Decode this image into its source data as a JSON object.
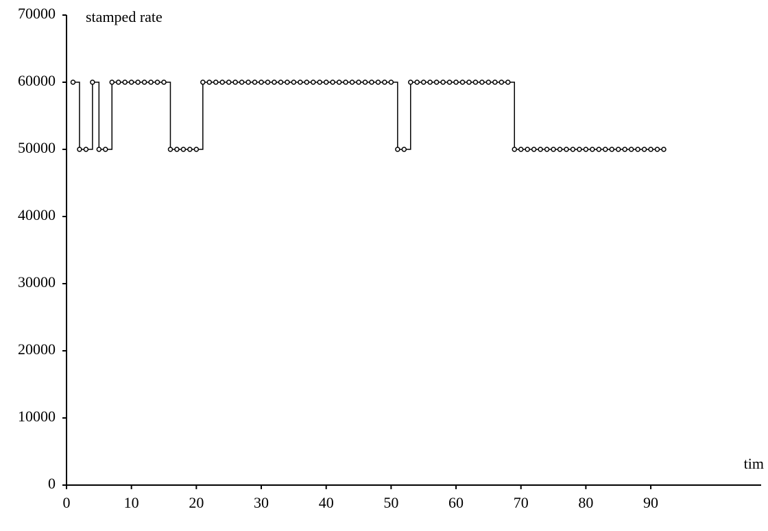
{
  "chart_data": {
    "type": "line",
    "step": "post",
    "y_label": "stamped rate",
    "x_label": "tim",
    "x": [
      1,
      2,
      3,
      4,
      5,
      6,
      7,
      8,
      9,
      10,
      11,
      12,
      13,
      14,
      15,
      16,
      17,
      18,
      19,
      20,
      21,
      22,
      23,
      24,
      25,
      26,
      27,
      28,
      29,
      30,
      31,
      32,
      33,
      34,
      35,
      36,
      37,
      38,
      39,
      40,
      41,
      42,
      43,
      44,
      45,
      46,
      47,
      48,
      49,
      50,
      51,
      52,
      53,
      54,
      55,
      56,
      57,
      58,
      59,
      60,
      61,
      62,
      63,
      64,
      65,
      66,
      67,
      68,
      69,
      70,
      71,
      72,
      73,
      74,
      75,
      76,
      77,
      78,
      79,
      80,
      81,
      82,
      83,
      84,
      85,
      86,
      87,
      88,
      89,
      90,
      91,
      92
    ],
    "series": [
      {
        "color": "#000000",
        "marker": "open-circle",
        "values": [
          60000,
          50000,
          50000,
          60000,
          50000,
          50000,
          60000,
          60000,
          60000,
          60000,
          60000,
          60000,
          60000,
          60000,
          60000,
          50000,
          50000,
          50000,
          50000,
          50000,
          60000,
          60000,
          60000,
          60000,
          60000,
          60000,
          60000,
          60000,
          60000,
          60000,
          60000,
          60000,
          60000,
          60000,
          60000,
          60000,
          60000,
          60000,
          60000,
          60000,
          60000,
          60000,
          60000,
          60000,
          60000,
          60000,
          60000,
          60000,
          60000,
          60000,
          50000,
          50000,
          60000,
          60000,
          60000,
          60000,
          60000,
          60000,
          60000,
          60000,
          60000,
          60000,
          60000,
          60000,
          60000,
          60000,
          60000,
          60000,
          50000,
          50000,
          50000,
          50000,
          50000,
          50000,
          50000,
          50000,
          50000,
          50000,
          50000,
          50000,
          50000,
          50000,
          50000,
          50000,
          50000,
          50000,
          50000,
          50000,
          50000,
          50000,
          50000,
          50000
        ]
      }
    ],
    "xlim": [
      0,
      107
    ],
    "ylim": [
      0,
      70000
    ],
    "xticks": [
      0,
      10,
      20,
      30,
      40,
      50,
      60,
      70,
      80,
      90
    ],
    "yticks": [
      0,
      10000,
      20000,
      30000,
      40000,
      50000,
      60000,
      70000
    ],
    "grid": false
  }
}
